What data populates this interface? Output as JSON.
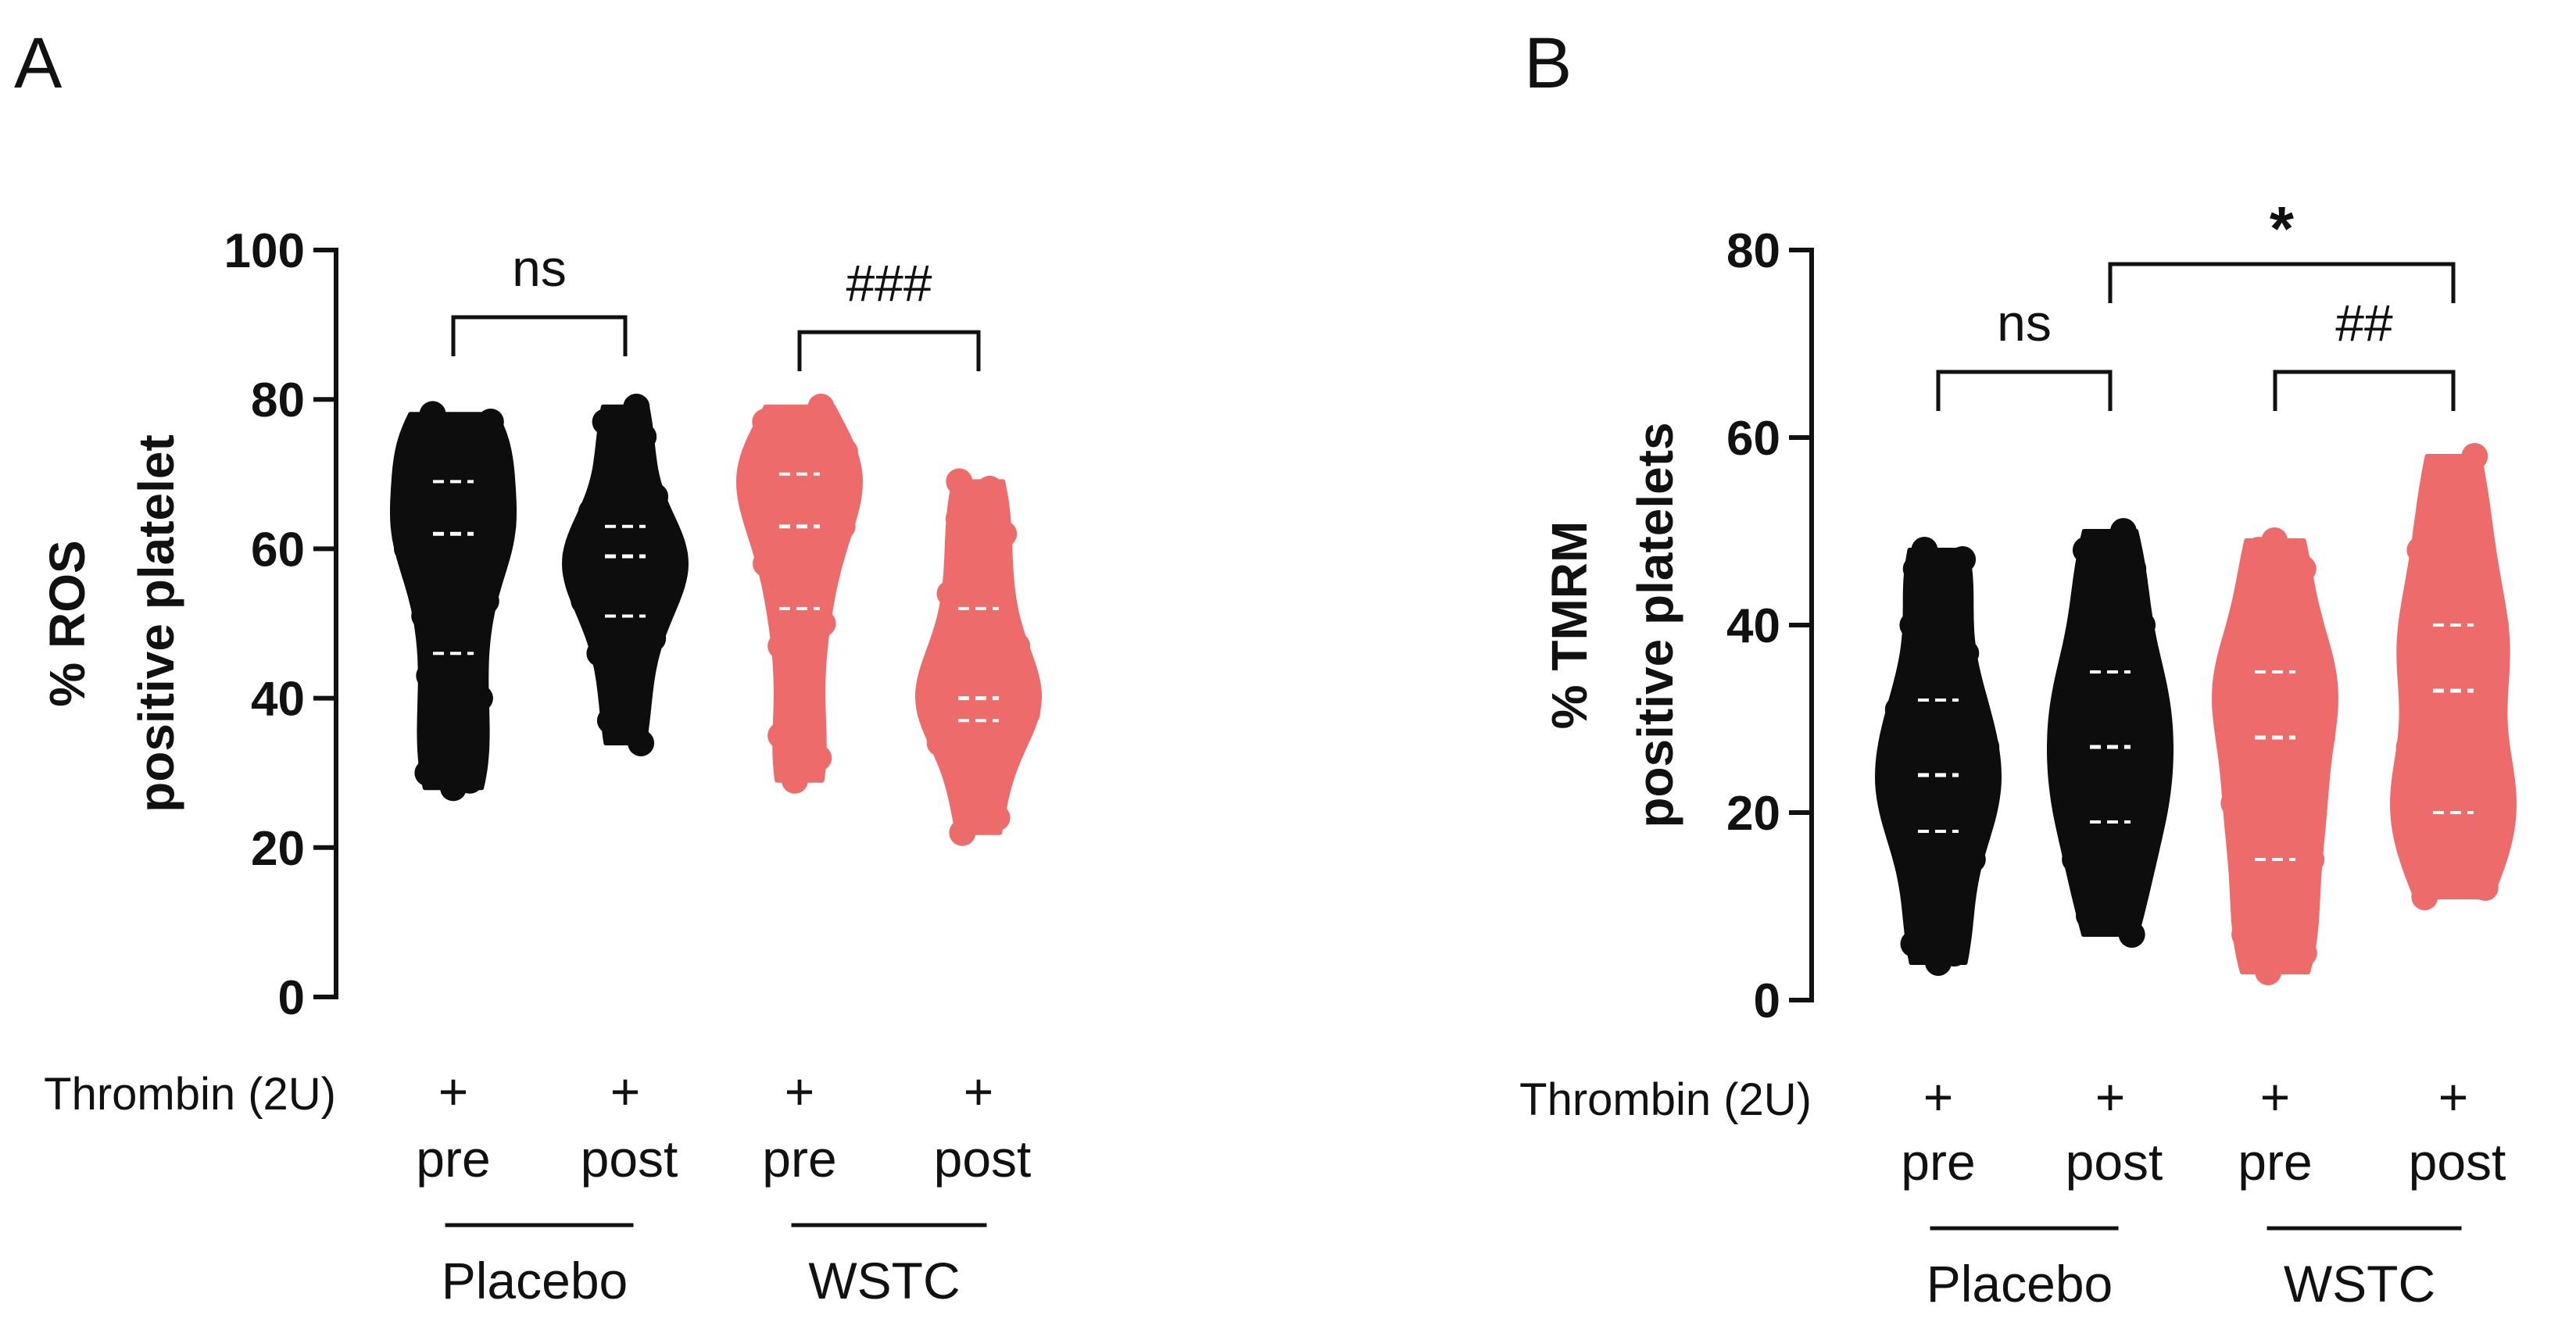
{
  "colors": {
    "placebo": "#0d0d0d",
    "wstc": "#ee6b6b",
    "axis": "#111111"
  },
  "chart_data": [
    {
      "panel": "A",
      "type": "violin",
      "ylabel_line1": "% ROS",
      "ylabel_line2": "positive platelet",
      "ylim": [
        0,
        100
      ],
      "yticks": [
        "0",
        "20",
        "40",
        "60",
        "80",
        "100"
      ],
      "row_label": "Thrombin (2U)",
      "plus_marks": [
        "+",
        "+",
        "+",
        "+"
      ],
      "categories": [
        "pre",
        "post",
        "pre",
        "post"
      ],
      "groups": [
        "Placebo",
        "WSTC"
      ],
      "series": [
        {
          "name": "Placebo pre",
          "group": "Placebo",
          "min": 28,
          "max": 78,
          "median": 62,
          "values": [
            28,
            29,
            30,
            33,
            36,
            38,
            40,
            43,
            46,
            49,
            51,
            53,
            55,
            57,
            59,
            60,
            61,
            62,
            62,
            63,
            64,
            65,
            66,
            67,
            69,
            71,
            72,
            73,
            74,
            75,
            76,
            76,
            77,
            78
          ]
        },
        {
          "name": "Placebo post",
          "group": "Placebo",
          "min": 34,
          "max": 79,
          "median": 59,
          "values": [
            34,
            37,
            40,
            43,
            46,
            48,
            50,
            51,
            52,
            53,
            54,
            55,
            56,
            57,
            57,
            58,
            58,
            59,
            59,
            60,
            60,
            61,
            62,
            63,
            64,
            65,
            67,
            70,
            73,
            75,
            77,
            79
          ]
        },
        {
          "name": "WSTC pre",
          "group": "WSTC",
          "min": 29,
          "max": 79,
          "median": 63,
          "values": [
            29,
            30,
            32,
            35,
            39,
            43,
            47,
            50,
            52,
            54,
            56,
            58,
            60,
            61,
            62,
            63,
            64,
            65,
            66,
            67,
            68,
            69,
            69,
            70,
            70,
            71,
            71,
            72,
            73,
            74,
            75,
            76,
            77,
            79
          ]
        },
        {
          "name": "WSTC post",
          "group": "WSTC",
          "min": 22,
          "max": 69,
          "median": 40,
          "values": [
            22,
            24,
            27,
            30,
            32,
            34,
            35,
            36,
            37,
            38,
            38,
            39,
            39,
            40,
            40,
            41,
            41,
            42,
            43,
            44,
            45,
            46,
            47,
            48,
            50,
            52,
            54,
            56,
            57,
            60,
            62,
            64,
            66,
            68,
            69
          ]
        }
      ],
      "brackets": [
        {
          "from": 0,
          "to": 1,
          "label": "ns",
          "y": 91
        },
        {
          "from": 2,
          "to": 3,
          "label": "###",
          "y": 89
        }
      ]
    },
    {
      "panel": "B",
      "type": "violin",
      "ylabel_line1": "% TMRM",
      "ylabel_line2": "positive platelets",
      "ylim": [
        0,
        80
      ],
      "yticks": [
        "0",
        "20",
        "40",
        "60",
        "80"
      ],
      "row_label": "Thrombin (2U)",
      "plus_marks": [
        "+",
        "+",
        "+",
        "+"
      ],
      "categories": [
        "pre",
        "post",
        "pre",
        "post"
      ],
      "groups": [
        "Placebo",
        "WSTC"
      ],
      "series": [
        {
          "name": "Placebo pre",
          "group": "Placebo",
          "min": 4,
          "max": 48,
          "median": 24,
          "values": [
            4,
            5,
            6,
            8,
            11,
            13,
            15,
            17,
            18,
            19,
            20,
            21,
            21,
            22,
            23,
            24,
            24,
            25,
            26,
            27,
            28,
            29,
            30,
            31,
            32,
            33,
            35,
            37,
            40,
            43,
            45,
            46,
            47,
            48
          ]
        },
        {
          "name": "Placebo post",
          "group": "Placebo",
          "min": 7,
          "max": 50,
          "median": 27,
          "values": [
            7,
            9,
            11,
            13,
            15,
            16,
            18,
            19,
            20,
            21,
            22,
            23,
            24,
            25,
            26,
            27,
            28,
            29,
            30,
            31,
            32,
            33,
            34,
            35,
            36,
            38,
            40,
            42,
            44,
            46,
            48,
            50
          ]
        },
        {
          "name": "WSTC pre",
          "group": "WSTC",
          "min": 3,
          "max": 49,
          "median": 28,
          "values": [
            3,
            4,
            5,
            7,
            9,
            11,
            13,
            15,
            17,
            19,
            20,
            21,
            22,
            24,
            26,
            28,
            29,
            30,
            31,
            32,
            33,
            34,
            35,
            36,
            37,
            38,
            40,
            43,
            46,
            48,
            49
          ]
        },
        {
          "name": "WSTC post",
          "group": "WSTC",
          "min": 11,
          "max": 58,
          "median": 33,
          "values": [
            11,
            12,
            13,
            15,
            17,
            18,
            19,
            20,
            21,
            22,
            23,
            24,
            25,
            27,
            29,
            31,
            33,
            35,
            36,
            37,
            38,
            39,
            40,
            42,
            44,
            46,
            48,
            50,
            53,
            56,
            58
          ]
        }
      ],
      "brackets": [
        {
          "from": 0,
          "to": 1,
          "label": "ns",
          "y": 67
        },
        {
          "from": 2,
          "to": 3,
          "label": "##",
          "y": 67
        },
        {
          "from": 1,
          "to": 3,
          "label": "*",
          "y": 78.5
        }
      ]
    }
  ]
}
